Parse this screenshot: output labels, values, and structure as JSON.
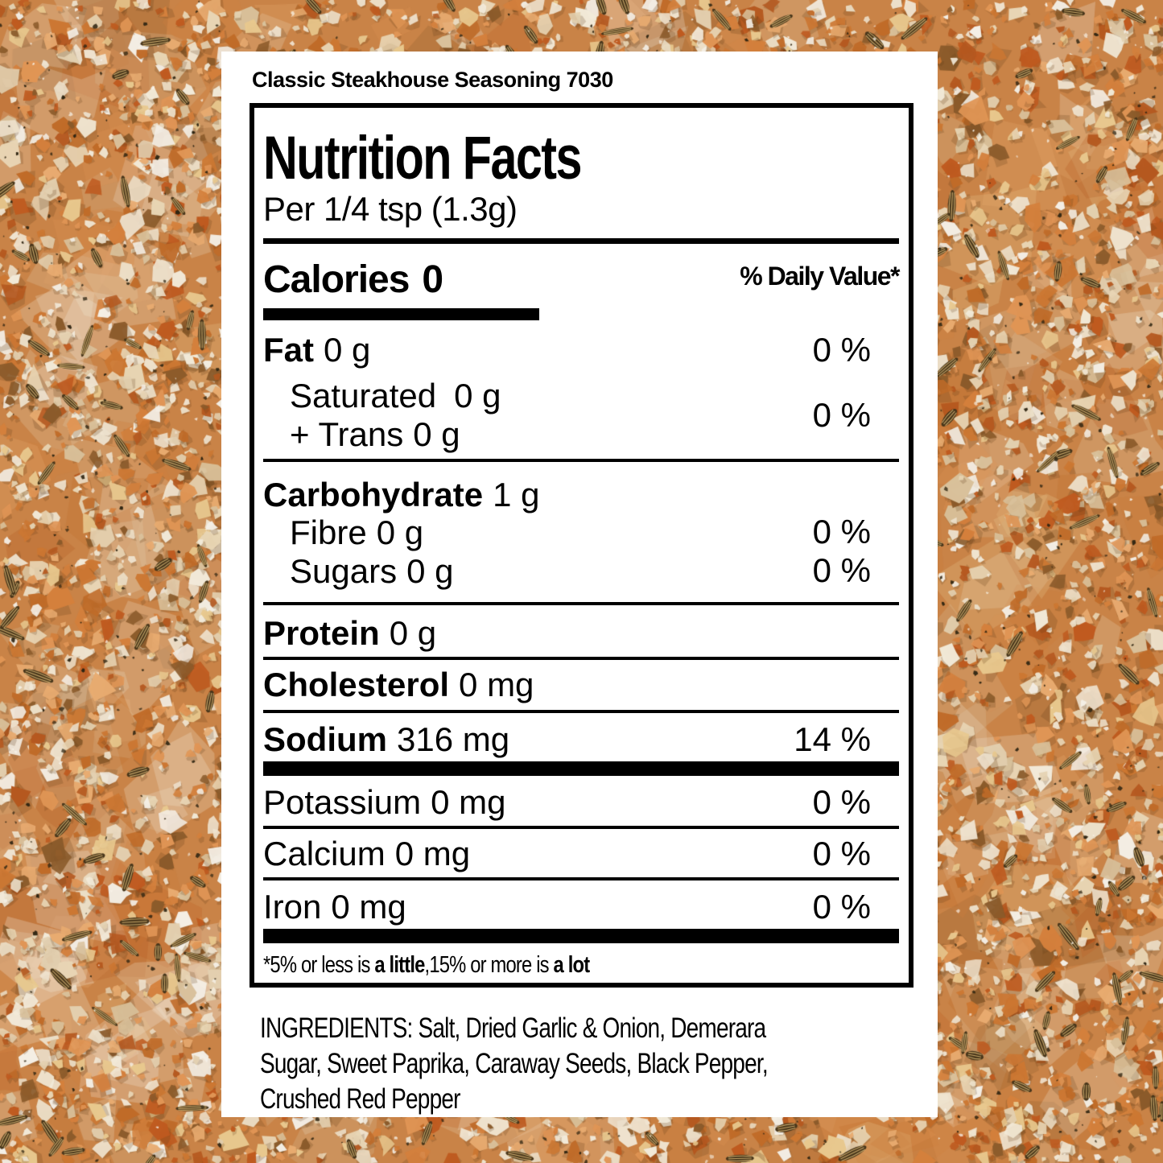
{
  "header": {
    "product_title": "Classic Steakhouse Seasoning 7030"
  },
  "label": {
    "title": "Nutrition Facts",
    "serving": "Per 1/4 tsp (1.3g)",
    "calories": {
      "label": "Calories",
      "value": "0"
    },
    "daily_value_header": "% Daily Value*",
    "rows": {
      "fat": {
        "name": "Fat",
        "amount": "0 g",
        "dv": "0 %"
      },
      "saturated": {
        "name": "Saturated",
        "amount": "0 g"
      },
      "trans": {
        "name": "+ Trans",
        "amount": "0 g",
        "dv": "0 %"
      },
      "carbohydrate": {
        "name": "Carbohydrate",
        "amount": "1 g"
      },
      "fibre": {
        "name": "Fibre",
        "amount": "0 g",
        "dv": "0 %"
      },
      "sugars": {
        "name": "Sugars",
        "amount": "0 g",
        "dv": "0 %"
      },
      "protein": {
        "name": "Protein",
        "amount": "0 g"
      },
      "cholesterol": {
        "name": "Cholesterol",
        "amount": "0 mg"
      },
      "sodium": {
        "name": "Sodium",
        "amount": "316 mg",
        "dv": "14 %"
      },
      "potassium": {
        "name": "Potassium",
        "amount": "0 mg",
        "dv": "0 %"
      },
      "calcium": {
        "name": "Calcium",
        "amount": "0 mg",
        "dv": "0 %"
      },
      "iron": {
        "name": "Iron",
        "amount": "0 mg",
        "dv": "0 %"
      }
    },
    "footnote": {
      "prefix": "*5% or less is ",
      "bold1": "a little",
      "mid": ",15% or more is ",
      "bold2": "a lot"
    }
  },
  "ingredients": {
    "text": "INGREDIENTS: Salt, Dried Garlic & Onion, Demerara Sugar, Sweet Paprika, Caraway Seeds, Black Pepper, Crushed Red Pepper"
  },
  "background": {
    "description": "seasoning-mix-photo",
    "base": "#c98347",
    "flake_colors": [
      "#f2ead9",
      "#ecdfc8",
      "#e3d0b0",
      "#d9c19b",
      "#f4efe6",
      "#e8d5b4",
      "#efe3cf",
      "#e09555",
      "#d4803c",
      "#cc7732",
      "#c06b28",
      "#e8ab70",
      "#bf5a1f",
      "#b5581f",
      "#e8c88e",
      "#8a5a2a"
    ],
    "seed_body": "#47351a",
    "seed_stripe": "#c9a86a",
    "speck_dark": "#2f2512",
    "speck_light": "#f7f2e8",
    "shadow": "rgba(96,58,22,0.22)",
    "text_color": "#000000",
    "panel_color": "#ffffff"
  }
}
